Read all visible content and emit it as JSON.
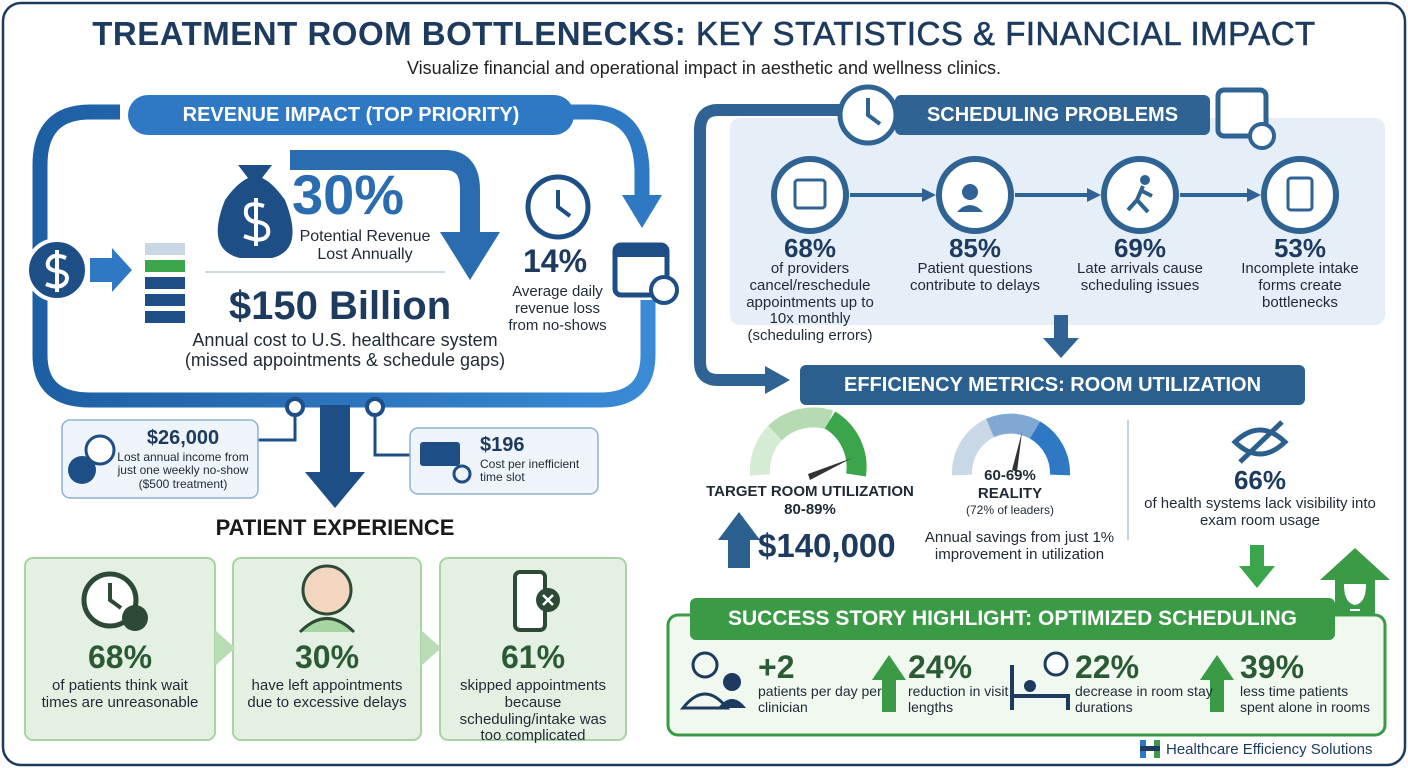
{
  "header": {
    "title_main": "TREATMENT ROOM BOTTLENECKS:",
    "title_rest": "KEY STATISTICS & FINANCIAL IMPACT",
    "subtitle": "Visualize financial and operational impact in aesthetic and wellness clinics."
  },
  "revenue": {
    "heading": "REVENUE IMPACT (TOP PRIORITY)",
    "stat": "30%",
    "stat_label": "Potential Revenue Lost Annually",
    "cost": "$150 Billion",
    "cost_label": "Annual cost to U.S. healthcare system (missed appointments & schedule gaps)",
    "daily": "14%",
    "daily_label": "Average daily revenue loss from no-shows",
    "callouts": [
      {
        "value": "$26,000",
        "label": "Lost annual income from just one weekly no-show ($500 treatment)"
      },
      {
        "value": "$196",
        "label": "Cost per inefficient time slot"
      }
    ]
  },
  "patient": {
    "heading": "PATIENT EXPERIENCE",
    "items": [
      {
        "value": "68%",
        "label": "of patients think wait times are unreasonable"
      },
      {
        "value": "30%",
        "label": "have left appointments due to excessive delays"
      },
      {
        "value": "61%",
        "label": "skipped appointments because scheduling/intake was too complicated"
      }
    ]
  },
  "scheduling": {
    "heading": "SCHEDULING PROBLEMS",
    "items": [
      {
        "value": "68%",
        "label": "of providers cancel/reschedule appointments up to 10x monthly (scheduling errors)"
      },
      {
        "value": "85%",
        "label": "Patient questions contribute to delays"
      },
      {
        "value": "69%",
        "label": "Late arrivals cause scheduling issues"
      },
      {
        "value": "53%",
        "label": "Incomplete intake forms create bottlenecks"
      }
    ]
  },
  "efficiency": {
    "heading": "EFFICIENCY METRICS: ROOM UTILIZATION",
    "target_label": "TARGET ROOM UTILIZATION",
    "target_value": "80-89%",
    "reality_value": "60-69%",
    "reality_label": "REALITY",
    "reality_note": "(72% of leaders)",
    "savings": "$140,000",
    "savings_label": "Annual savings from just 1% improvement in utilization",
    "visibility": "66%",
    "visibility_label": "of health systems lack visibility into exam room usage"
  },
  "success": {
    "heading": "SUCCESS STORY HIGHLIGHT: OPTIMIZED SCHEDULING",
    "items": [
      {
        "value": "+2",
        "label": "patients per day per clinician"
      },
      {
        "value": "24%",
        "label": "reduction in visit lengths"
      },
      {
        "value": "22%",
        "label": "decrease in room stay durations"
      },
      {
        "value": "39%",
        "label": "less time patients spent alone in rooms"
      }
    ]
  },
  "footer": {
    "brand": "Healthcare Efficiency Solutions"
  }
}
